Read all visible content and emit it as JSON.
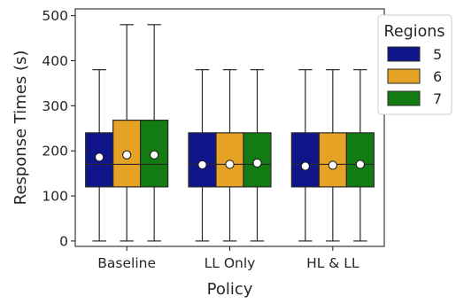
{
  "chart_data": {
    "type": "box",
    "xlabel": "Policy",
    "ylabel": "Response Times (s)",
    "ylim": [
      -12,
      515
    ],
    "yticks": [
      0,
      100,
      200,
      300,
      400,
      500
    ],
    "categories": [
      "Baseline",
      "LL Only",
      "HL & LL"
    ],
    "grid": false,
    "legend": {
      "title": "Regions",
      "placement": "top-right, outside plot"
    },
    "series": [
      {
        "name": "5",
        "color": "#10168a",
        "boxes": [
          {
            "whisker_low": 0,
            "q1": 120,
            "median": 170,
            "q3": 240,
            "whisker_high": 380,
            "mean": 186
          },
          {
            "whisker_low": 0,
            "q1": 120,
            "median": 170,
            "q3": 240,
            "whisker_high": 380,
            "mean": 169
          },
          {
            "whisker_low": 0,
            "q1": 120,
            "median": 170,
            "q3": 240,
            "whisker_high": 380,
            "mean": 166
          }
        ]
      },
      {
        "name": "6",
        "color": "#e5a224",
        "boxes": [
          {
            "whisker_low": 0,
            "q1": 120,
            "median": 170,
            "q3": 268,
            "whisker_high": 480,
            "mean": 191
          },
          {
            "whisker_low": 0,
            "q1": 120,
            "median": 170,
            "q3": 240,
            "whisker_high": 380,
            "mean": 170
          },
          {
            "whisker_low": 0,
            "q1": 120,
            "median": 170,
            "q3": 240,
            "whisker_high": 380,
            "mean": 168
          }
        ]
      },
      {
        "name": "7",
        "color": "#127c12",
        "boxes": [
          {
            "whisker_low": 0,
            "q1": 120,
            "median": 170,
            "q3": 268,
            "whisker_high": 480,
            "mean": 191
          },
          {
            "whisker_low": 0,
            "q1": 120,
            "median": 170,
            "q3": 240,
            "whisker_high": 380,
            "mean": 173
          },
          {
            "whisker_low": 0,
            "q1": 120,
            "median": 170,
            "q3": 240,
            "whisker_high": 380,
            "mean": 170
          }
        ]
      }
    ]
  }
}
